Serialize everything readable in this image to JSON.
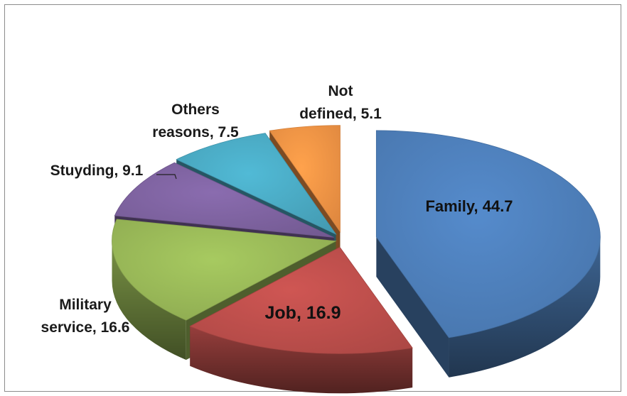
{
  "chart_data": {
    "type": "pie",
    "title": "",
    "slices": [
      {
        "label": "Family",
        "value": 44.7,
        "text": "Family, 44.7",
        "color": "#4f81bd"
      },
      {
        "label": "Job",
        "value": 16.9,
        "text": "Job, 16.9",
        "color": "#c0504d"
      },
      {
        "label": "Military service",
        "value": 16.6,
        "text_lines": [
          "Military",
          "service, 16.6"
        ],
        "color": "#9bbb59"
      },
      {
        "label": "Stuyding",
        "value": 9.1,
        "text": "Stuyding, 9.1",
        "color": "#8064a2"
      },
      {
        "label": "Others reasons",
        "value": 7.5,
        "text_lines": [
          "Others",
          "reasons, 7.5"
        ],
        "color": "#4bacc6"
      },
      {
        "label": "Not defined",
        "value": 5.1,
        "text_lines": [
          "Not",
          "defined, 5.1"
        ],
        "color": "#f79646"
      }
    ],
    "style": "3d-exploded",
    "legend": "none"
  }
}
